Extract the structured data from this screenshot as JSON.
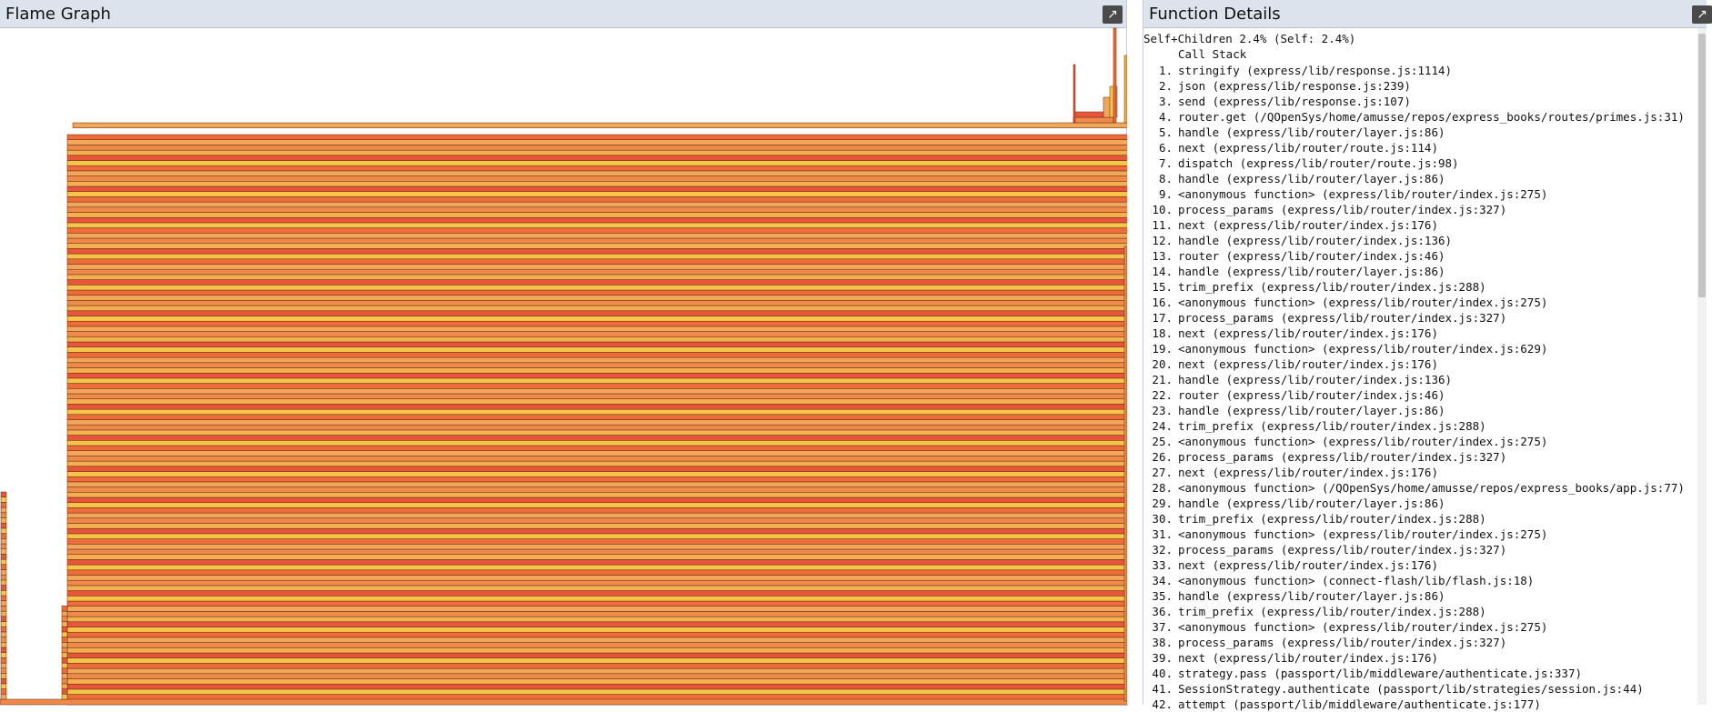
{
  "flame_panel": {
    "title": "Flame Graph",
    "expand_icon": "expand-icon",
    "colors": [
      "#f2a65a",
      "#ef6c3a",
      "#f7c44a",
      "#e8553a",
      "#f4b04f",
      "#f08a4b"
    ]
  },
  "details_panel": {
    "title": "Function Details",
    "expand_icon": "expand-icon",
    "summary": "Self+Children 2.4% (Self: 2.4%)",
    "stack_header": "Call Stack",
    "call_stack": [
      {
        "num": "1.",
        "text": "stringify (express/lib/response.js:1114)"
      },
      {
        "num": "2.",
        "text": "json (express/lib/response.js:239)"
      },
      {
        "num": "3.",
        "text": "send (express/lib/response.js:107)"
      },
      {
        "num": "4.",
        "text": "router.get (/QOpenSys/home/amusse/repos/express_books/routes/primes.js:31)"
      },
      {
        "num": "5.",
        "text": "handle (express/lib/router/layer.js:86)"
      },
      {
        "num": "6.",
        "text": "next (express/lib/router/route.js:114)"
      },
      {
        "num": "7.",
        "text": "dispatch (express/lib/router/route.js:98)"
      },
      {
        "num": "8.",
        "text": "handle (express/lib/router/layer.js:86)"
      },
      {
        "num": "9.",
        "text": "<anonymous function> (express/lib/router/index.js:275)"
      },
      {
        "num": "10.",
        "text": "process_params (express/lib/router/index.js:327)"
      },
      {
        "num": "11.",
        "text": "next (express/lib/router/index.js:176)"
      },
      {
        "num": "12.",
        "text": "handle (express/lib/router/index.js:136)"
      },
      {
        "num": "13.",
        "text": "router (express/lib/router/index.js:46)"
      },
      {
        "num": "14.",
        "text": "handle (express/lib/router/layer.js:86)"
      },
      {
        "num": "15.",
        "text": "trim_prefix (express/lib/router/index.js:288)"
      },
      {
        "num": "16.",
        "text": "<anonymous function> (express/lib/router/index.js:275)"
      },
      {
        "num": "17.",
        "text": "process_params (express/lib/router/index.js:327)"
      },
      {
        "num": "18.",
        "text": "next (express/lib/router/index.js:176)"
      },
      {
        "num": "19.",
        "text": "<anonymous function> (express/lib/router/index.js:629)"
      },
      {
        "num": "20.",
        "text": "next (express/lib/router/index.js:176)"
      },
      {
        "num": "21.",
        "text": "handle (express/lib/router/index.js:136)"
      },
      {
        "num": "22.",
        "text": "router (express/lib/router/index.js:46)"
      },
      {
        "num": "23.",
        "text": "handle (express/lib/router/layer.js:86)"
      },
      {
        "num": "24.",
        "text": "trim_prefix (express/lib/router/index.js:288)"
      },
      {
        "num": "25.",
        "text": "<anonymous function> (express/lib/router/index.js:275)"
      },
      {
        "num": "26.",
        "text": "process_params (express/lib/router/index.js:327)"
      },
      {
        "num": "27.",
        "text": "next (express/lib/router/index.js:176)"
      },
      {
        "num": "28.",
        "text": "<anonymous function> (/QOpenSys/home/amusse/repos/express_books/app.js:77)"
      },
      {
        "num": "29.",
        "text": "handle (express/lib/router/layer.js:86)"
      },
      {
        "num": "30.",
        "text": "trim_prefix (express/lib/router/index.js:288)"
      },
      {
        "num": "31.",
        "text": "<anonymous function> (express/lib/router/index.js:275)"
      },
      {
        "num": "32.",
        "text": "process_params (express/lib/router/index.js:327)"
      },
      {
        "num": "33.",
        "text": "next (express/lib/router/index.js:176)"
      },
      {
        "num": "34.",
        "text": "<anonymous function> (connect-flash/lib/flash.js:18)"
      },
      {
        "num": "35.",
        "text": "handle (express/lib/router/layer.js:86)"
      },
      {
        "num": "36.",
        "text": "trim_prefix (express/lib/router/index.js:288)"
      },
      {
        "num": "37.",
        "text": "<anonymous function> (express/lib/router/index.js:275)"
      },
      {
        "num": "38.",
        "text": "process_params (express/lib/router/index.js:327)"
      },
      {
        "num": "39.",
        "text": "next (express/lib/router/index.js:176)"
      },
      {
        "num": "40.",
        "text": "strategy.pass (passport/lib/middleware/authenticate.js:337)"
      },
      {
        "num": "41.",
        "text": "SessionStrategy.authenticate (passport/lib/strategies/session.js:44)"
      },
      {
        "num": "42.",
        "text": "attempt (passport/lib/middleware/authenticate.js:177)"
      }
    ]
  }
}
